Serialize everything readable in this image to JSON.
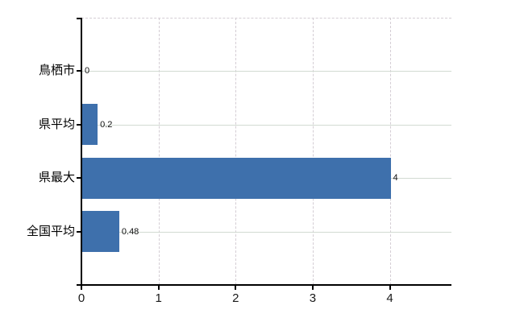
{
  "chart_data": {
    "type": "bar",
    "orientation": "horizontal",
    "title": "",
    "categories": [
      "鳥栖市",
      "県平均",
      "県最大",
      "全国平均"
    ],
    "values": [
      0,
      0.2,
      4,
      0.48
    ],
    "value_labels": [
      "0",
      "0.2",
      "4",
      "0.48"
    ],
    "x_tick_labels": [
      "0",
      "1",
      "2",
      "3",
      "4"
    ],
    "x_tick_values": [
      0,
      1,
      2,
      3,
      4
    ],
    "xlim": [
      0,
      4.8
    ],
    "grid": true,
    "legend": false,
    "colors": {
      "bar": "#3e70ac",
      "axis": "#000000",
      "vertical_gridline": "#d4cdd4",
      "horizontal_gridline": "#d2dbd2",
      "category_label": "#000000",
      "value_label": "#111111",
      "tick_label": "#1a1a1a",
      "background": "#ffffff"
    }
  }
}
